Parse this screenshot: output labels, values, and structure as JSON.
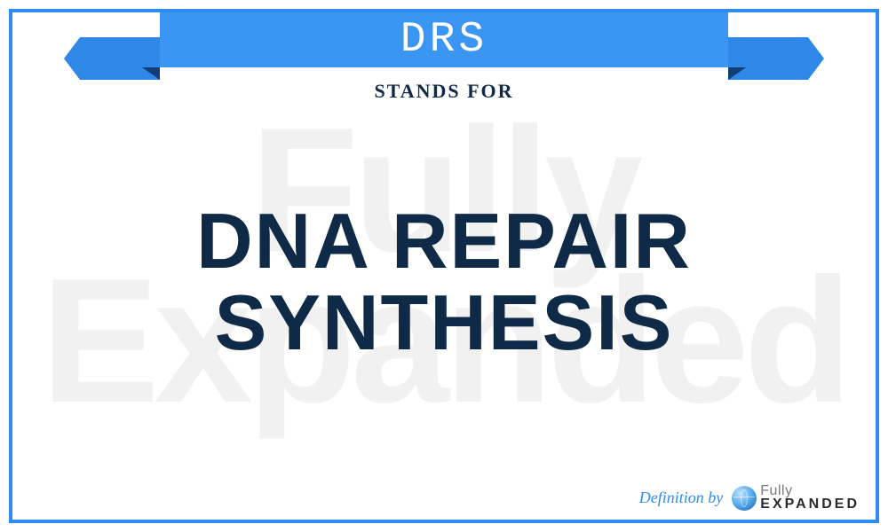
{
  "acronym": "DRS",
  "stands_for_label": "STANDS FOR",
  "definition_line1": "DNA REPAIR",
  "definition_line2": "SYNTHESIS",
  "footer": {
    "definition_by": "Definition by",
    "logo_top": "Fully",
    "logo_bottom": "EXPANDED"
  },
  "watermark_line1": "Fully",
  "watermark_line2": "Expanded",
  "colors": {
    "border": "#2e8bf0",
    "ribbon_main": "#3b95f2",
    "ribbon_tail": "#2f87e8",
    "ribbon_fold": "#0f3f75",
    "text": "#0f2a47",
    "accent": "#2e8bf0",
    "watermark": "#f1f1f1"
  }
}
